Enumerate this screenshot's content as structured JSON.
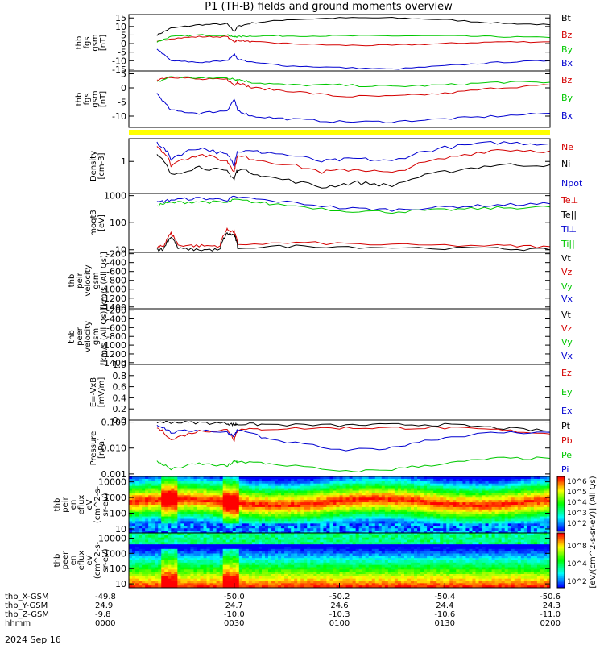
{
  "chart_data": {
    "title": "P1 (TH-B) fields and ground moments overview",
    "type": "line",
    "date_label": "2024 Sep 16",
    "colors": {
      "black": "#000000",
      "red": "#d40000",
      "green": "#00c800",
      "blue": "#0000d0",
      "yellow": "#ffff00"
    },
    "panels": [
      {
        "id": "fgs",
        "ylabel": [
          "thb",
          "fgs",
          "gsm",
          "[nT]"
        ],
        "yrange": [
          -16,
          17
        ],
        "yticks": [
          "15",
          "10",
          "5",
          "0",
          "-5",
          "-10",
          "-15"
        ],
        "ytick_values": [
          15,
          10,
          5,
          0,
          -5,
          -10,
          -15
        ],
        "legend": [
          "Bt",
          "Bz",
          "By",
          "Bx"
        ],
        "series": [
          {
            "name": "Bt",
            "color": "#000000",
            "x": [
              8,
              12,
              20,
              28,
              30,
              31,
              35,
              45,
              60,
              75,
              90,
              105,
              120
            ],
            "y": [
              5,
              9,
              11,
              11.5,
              7,
              10,
              12,
              14,
              15,
              15,
              14,
              12,
              11
            ]
          },
          {
            "name": "Bz",
            "color": "#d40000",
            "x": [
              8,
              12,
              20,
              28,
              30,
              31,
              35,
              45,
              60,
              75,
              90,
              105,
              120
            ],
            "y": [
              1,
              3,
              4,
              4,
              1,
              2,
              1,
              0,
              -1,
              -1,
              0,
              1,
              1
            ]
          },
          {
            "name": "By",
            "color": "#00c800",
            "x": [
              8,
              12,
              20,
              28,
              30,
              31,
              35,
              45,
              60,
              75,
              90,
              105,
              120
            ],
            "y": [
              1,
              4,
              5,
              5,
              4,
              4,
              4.5,
              4.5,
              4.5,
              4.5,
              4.5,
              4,
              3.5
            ]
          },
          {
            "name": "Bx",
            "color": "#0000d0",
            "x": [
              8,
              12,
              20,
              28,
              30,
              31,
              35,
              45,
              60,
              75,
              90,
              105,
              120
            ],
            "y": [
              -3,
              -10,
              -11,
              -10,
              -6,
              -9,
              -11,
              -13,
              -14,
              -15,
              -13,
              -11,
              -10
            ]
          }
        ]
      },
      {
        "id": "fgm",
        "ylabel": [
          "thb",
          "fgs",
          "gsm",
          "[nT]"
        ],
        "yrange": [
          -14,
          6
        ],
        "yticks": [
          "5",
          "0",
          "-5",
          "-10"
        ],
        "ytick_values": [
          5,
          0,
          -5,
          -10
        ],
        "legend": [
          "Bz",
          "By",
          "Bx"
        ],
        "series": [
          {
            "name": "Bz",
            "color": "#d40000",
            "x": [
              8,
              12,
              20,
              28,
              30,
              31,
              35,
              45,
              60,
              75,
              90,
              105,
              120
            ],
            "y": [
              3,
              4,
              3,
              3,
              1,
              2,
              0,
              -1,
              -3,
              -3,
              -2,
              0,
              1
            ]
          },
          {
            "name": "By",
            "color": "#00c800",
            "x": [
              8,
              12,
              20,
              28,
              30,
              31,
              35,
              45,
              60,
              75,
              90,
              105,
              120
            ],
            "y": [
              2,
              4,
              3.5,
              3.5,
              3,
              3,
              2,
              1,
              1,
              0.5,
              1,
              2,
              2
            ]
          },
          {
            "name": "Bx",
            "color": "#0000d0",
            "x": [
              8,
              12,
              20,
              28,
              30,
              31,
              35,
              45,
              60,
              75,
              90,
              105,
              120
            ],
            "y": [
              -2,
              -8,
              -9,
              -8,
              -4,
              -8,
              -10,
              -11,
              -12,
              -12,
              -11,
              -10,
              -9
            ]
          }
        ]
      },
      {
        "id": "density",
        "ylabel": [
          "Density",
          "[cm-3]"
        ],
        "log": true,
        "yrange": [
          0.12,
          4.5
        ],
        "yticks": [
          "1"
        ],
        "ytick_values": [
          1
        ],
        "legend": [
          "Ne",
          "Ni",
          "Npot"
        ],
        "series": [
          {
            "name": "Npot",
            "color": "#0000d0",
            "x": [
              8,
              12,
              20,
              28,
              30,
              31,
              40,
              55,
              65,
              75,
              90,
              105,
              120
            ],
            "y": [
              3.5,
              1.2,
              2.5,
              1.5,
              0.8,
              2.0,
              1.8,
              1.0,
              1.2,
              1.0,
              2.5,
              3.5,
              3.2
            ]
          },
          {
            "name": "Ne",
            "color": "#d40000",
            "x": [
              8,
              12,
              20,
              28,
              30,
              31,
              40,
              55,
              65,
              75,
              90,
              105,
              120
            ],
            "y": [
              2.8,
              0.8,
              1.6,
              1.0,
              0.5,
              1.4,
              1.0,
              0.5,
              0.6,
              0.45,
              1.2,
              2.2,
              2.0
            ]
          },
          {
            "name": "Ni",
            "color": "#000000",
            "x": [
              8,
              12,
              20,
              28,
              30,
              31,
              40,
              55,
              65,
              75,
              90,
              105,
              120
            ],
            "y": [
              1.5,
              0.4,
              0.7,
              0.5,
              0.3,
              0.6,
              0.35,
              0.18,
              0.25,
              0.2,
              0.5,
              0.8,
              0.8
            ]
          }
        ]
      },
      {
        "id": "temperature",
        "ylabel": [
          "moqt3",
          "[eV]"
        ],
        "log": true,
        "yrange": [
          8,
          1200
        ],
        "yticks": [
          "1000",
          "100",
          "10"
        ],
        "ytick_values": [
          1000,
          100,
          10
        ],
        "legend": [
          "Te⊥",
          "Te||",
          "Ti⊥",
          "Ti||"
        ],
        "series": [
          {
            "name": "Ti⊥",
            "color": "#0000d0",
            "x": [
              8,
              12,
              20,
              28,
              30,
              40,
              60,
              75,
              90,
              105,
              120
            ],
            "y": [
              550,
              700,
              800,
              700,
              900,
              650,
              350,
              300,
              380,
              450,
              500
            ]
          },
          {
            "name": "Ti||",
            "color": "#00c800",
            "x": [
              8,
              12,
              20,
              28,
              30,
              40,
              60,
              75,
              90,
              105,
              120
            ],
            "y": [
              450,
              550,
              600,
              550,
              700,
              500,
              280,
              250,
              300,
              350,
              380
            ]
          },
          {
            "name": "Te⊥",
            "color": "#d40000",
            "x": [
              8,
              10,
              12,
              14,
              20,
              26,
              28,
              30,
              31,
              50,
              75,
              105,
              120
            ],
            "y": [
              12,
              14,
              40,
              15,
              14,
              14,
              55,
              45,
              16,
              18,
              15,
              14,
              13
            ]
          },
          {
            "name": "Te||",
            "color": "#000000",
            "x": [
              8,
              10,
              12,
              14,
              20,
              26,
              28,
              30,
              31,
              50,
              75,
              105,
              120
            ],
            "y": [
              10,
              11,
              30,
              11,
              10,
              10,
              40,
              35,
              12,
              14,
              12,
              11,
              10
            ]
          }
        ]
      },
      {
        "id": "peir",
        "ylabel": [
          "thb",
          "peir",
          "velocity",
          "gsm",
          "[km/s (All Qs)]"
        ],
        "yrange": [
          -1440,
          -170
        ],
        "yticks": [
          "-200",
          "-400",
          "-600",
          "-800",
          "-1000",
          "-1200",
          "-1400"
        ],
        "ytick_values": [
          -200,
          -400,
          -600,
          -800,
          -1000,
          -1200,
          -1400
        ],
        "legend": [
          "Vt",
          "Vz",
          "Vy",
          "Vx"
        ],
        "series": []
      },
      {
        "id": "peer",
        "ylabel": [
          "thb",
          "peer",
          "velocity",
          "gsm",
          "[km/s (All Qs)]"
        ],
        "yrange": [
          -1440,
          -170
        ],
        "yticks": [
          "-200",
          "-400",
          "-600",
          "-800",
          "-1000",
          "-1200",
          "-1400"
        ],
        "ytick_values": [
          -200,
          -400,
          -600,
          -800,
          -1000,
          -1200,
          -1400
        ],
        "legend": [
          "Vt",
          "Vz",
          "Vy",
          "Vx"
        ],
        "series": []
      },
      {
        "id": "efield",
        "ylabel": [
          "E=-VxB",
          "[mV/m]"
        ],
        "yrange": [
          0,
          1.0
        ],
        "yticks": [
          "1.0",
          "0.8",
          "0.6",
          "0.4",
          "0.2",
          "0.0"
        ],
        "ytick_values": [
          1.0,
          0.8,
          0.6,
          0.4,
          0.2,
          0.0
        ],
        "legend": [
          "Ez",
          "Ey",
          "Ex"
        ],
        "series": []
      },
      {
        "id": "pressure",
        "ylabel": [
          "Pressure",
          "[nPa]"
        ],
        "log": true,
        "yrange": [
          0.0008,
          0.12
        ],
        "yticks": [
          "0.100",
          "0.010",
          "0.001"
        ],
        "ytick_values": [
          0.1,
          0.01,
          0.001
        ],
        "legend": [
          "Pt",
          "Pb",
          "Pe",
          "Pi"
        ],
        "series": [
          {
            "name": "Pt",
            "color": "#000000",
            "x": [
              8,
              12,
              20,
              28,
              30,
              31,
              40,
              60,
              75,
              90,
              105,
              120
            ],
            "y": [
              0.1,
              0.1,
              0.095,
              0.09,
              0.08,
              0.085,
              0.08,
              0.075,
              0.08,
              0.08,
              0.06,
              0.045
            ]
          },
          {
            "name": "Pb",
            "color": "#d40000",
            "x": [
              8,
              12,
              20,
              28,
              30,
              31,
              40,
              60,
              75,
              90,
              105,
              120
            ],
            "y": [
              0.06,
              0.02,
              0.045,
              0.05,
              0.02,
              0.05,
              0.055,
              0.06,
              0.06,
              0.06,
              0.05,
              0.035
            ]
          },
          {
            "name": "Pi",
            "color": "#0000d0",
            "x": [
              8,
              12,
              20,
              28,
              30,
              31,
              40,
              60,
              75,
              90,
              105,
              120
            ],
            "y": [
              0.08,
              0.04,
              0.05,
              0.04,
              0.03,
              0.05,
              0.02,
              0.008,
              0.01,
              0.025,
              0.04,
              0.04
            ]
          },
          {
            "name": "Pe",
            "color": "#00c800",
            "x": [
              8,
              12,
              20,
              28,
              30,
              31,
              40,
              60,
              75,
              90,
              105,
              120
            ],
            "y": [
              0.003,
              0.0015,
              0.0025,
              0.002,
              0.003,
              0.003,
              0.0025,
              0.0012,
              0.0015,
              0.0025,
              0.004,
              0.004
            ]
          }
        ]
      },
      {
        "id": "peir_eflux",
        "type": "heatmap",
        "ylabel": [
          "thb",
          "peir",
          "en",
          "eflux",
          "eV",
          "(cm^2-s-",
          "sr-eV)"
        ],
        "log": true,
        "yrange": [
          5.5,
          22000
        ],
        "yticks": [
          "10000",
          "1000",
          "100",
          "10"
        ],
        "ytick_values": [
          10000,
          1000,
          100,
          10
        ]
      },
      {
        "id": "peer_eflux",
        "type": "heatmap",
        "ylabel": [
          "thb",
          "peer",
          "en",
          "eflux",
          "eV",
          "(cm^2-s-",
          "sr-eV)"
        ],
        "log": true,
        "yrange": [
          5.5,
          22000
        ],
        "yticks": [
          "10000",
          "1000",
          "100",
          "10"
        ],
        "ytick_values": [
          10000,
          1000,
          100,
          10
        ]
      }
    ],
    "colorbar": {
      "label": "[eV/(cm^2-s-sr-eV)] (All Qs)",
      "ticks_top": [
        "10^6",
        "10^5",
        "10^4",
        "10^3",
        "10^2"
      ],
      "ticks_bottom": [
        "10^8",
        "10^4",
        "10^2"
      ]
    },
    "x_axis": {
      "range_minutes": [
        0,
        120
      ],
      "tick_minutes": [
        0,
        30,
        60,
        90,
        120
      ],
      "rows": [
        {
          "label": "thb_X-GSM",
          "values": [
            "-49.8",
            "-50.0",
            "-50.2",
            "-50.4",
            "-50.6"
          ]
        },
        {
          "label": "thb_Y-GSM",
          "values": [
            "24.9",
            "24.7",
            "24.6",
            "24.4",
            "24.3"
          ]
        },
        {
          "label": "thb_Z-GSM",
          "values": [
            "-9.8",
            "-10.0",
            "-10.3",
            "-10.6",
            "-11.0"
          ]
        },
        {
          "label": "hhmm",
          "values": [
            "0000",
            "0030",
            "0100",
            "0130",
            "0200"
          ]
        }
      ]
    }
  }
}
